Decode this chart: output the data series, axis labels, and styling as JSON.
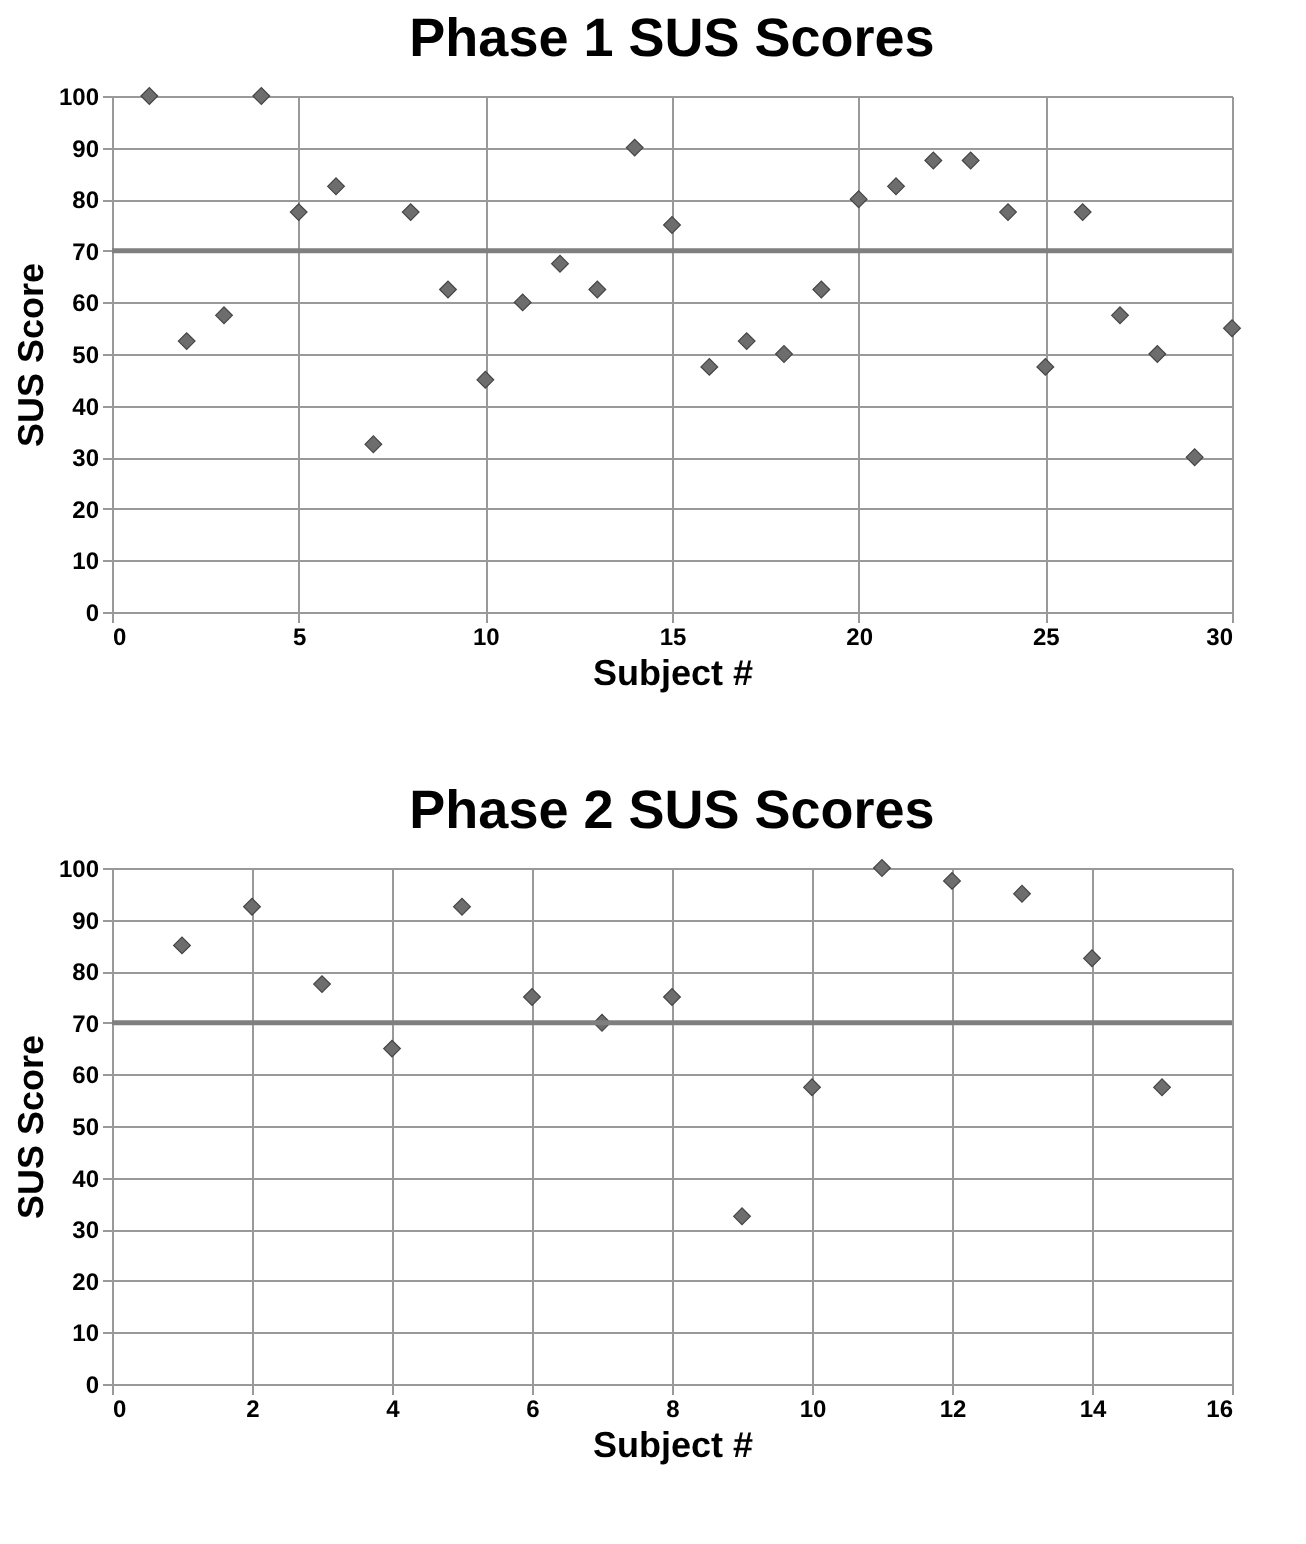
{
  "chart_data": [
    {
      "type": "scatter",
      "title": "Phase 1 SUS Scores",
      "xlabel": "Subject #",
      "ylabel": "SUS Score",
      "marker": "diamond",
      "grid": true,
      "x": [
        1,
        2,
        3,
        4,
        5,
        6,
        7,
        8,
        9,
        10,
        11,
        12,
        13,
        14,
        15,
        16,
        17,
        18,
        19,
        20,
        21,
        22,
        23,
        24,
        25,
        26,
        27,
        28,
        29,
        30
      ],
      "series": [
        {
          "color": "#6d6d6d",
          "values": [
            100,
            52.5,
            57.5,
            100,
            77.5,
            82.5,
            32.5,
            77.5,
            62.5,
            45,
            60,
            67.5,
            62.5,
            90,
            75,
            47.5,
            52.5,
            50,
            62.5,
            80,
            82.5,
            87.5,
            87.5,
            77.5,
            47.5,
            77.5,
            57.5,
            50,
            30,
            55
          ]
        }
      ],
      "xlim": [
        0,
        30
      ],
      "xticks": [
        0,
        5,
        10,
        15,
        20,
        25,
        30
      ],
      "ylim": [
        0,
        100
      ],
      "yticks": [
        0,
        10,
        20,
        30,
        40,
        50,
        60,
        70,
        80,
        90,
        100
      ],
      "ref_lines": [
        {
          "axis": "y",
          "value": 70,
          "color": "#7f7f7f"
        }
      ]
    },
    {
      "type": "scatter",
      "title": "Phase 2 SUS Scores",
      "xlabel": "Subject #",
      "ylabel": "SUS Score",
      "marker": "diamond",
      "grid": true,
      "x": [
        1,
        2,
        3,
        4,
        5,
        6,
        7,
        8,
        9,
        10,
        11,
        12,
        13,
        14,
        15
      ],
      "series": [
        {
          "color": "#6d6d6d",
          "values": [
            85,
            92.5,
            77.5,
            65,
            92.5,
            75,
            70,
            75,
            32.5,
            57.5,
            100,
            97.5,
            95,
            82.5,
            57.5
          ]
        }
      ],
      "xlim": [
        0,
        16
      ],
      "xticks": [
        0,
        2,
        4,
        6,
        8,
        10,
        12,
        14,
        16
      ],
      "ylim": [
        0,
        100
      ],
      "yticks": [
        0,
        10,
        20,
        30,
        40,
        50,
        60,
        70,
        80,
        90,
        100
      ],
      "ref_lines": [
        {
          "axis": "y",
          "value": 70,
          "color": "#7f7f7f"
        }
      ]
    }
  ]
}
